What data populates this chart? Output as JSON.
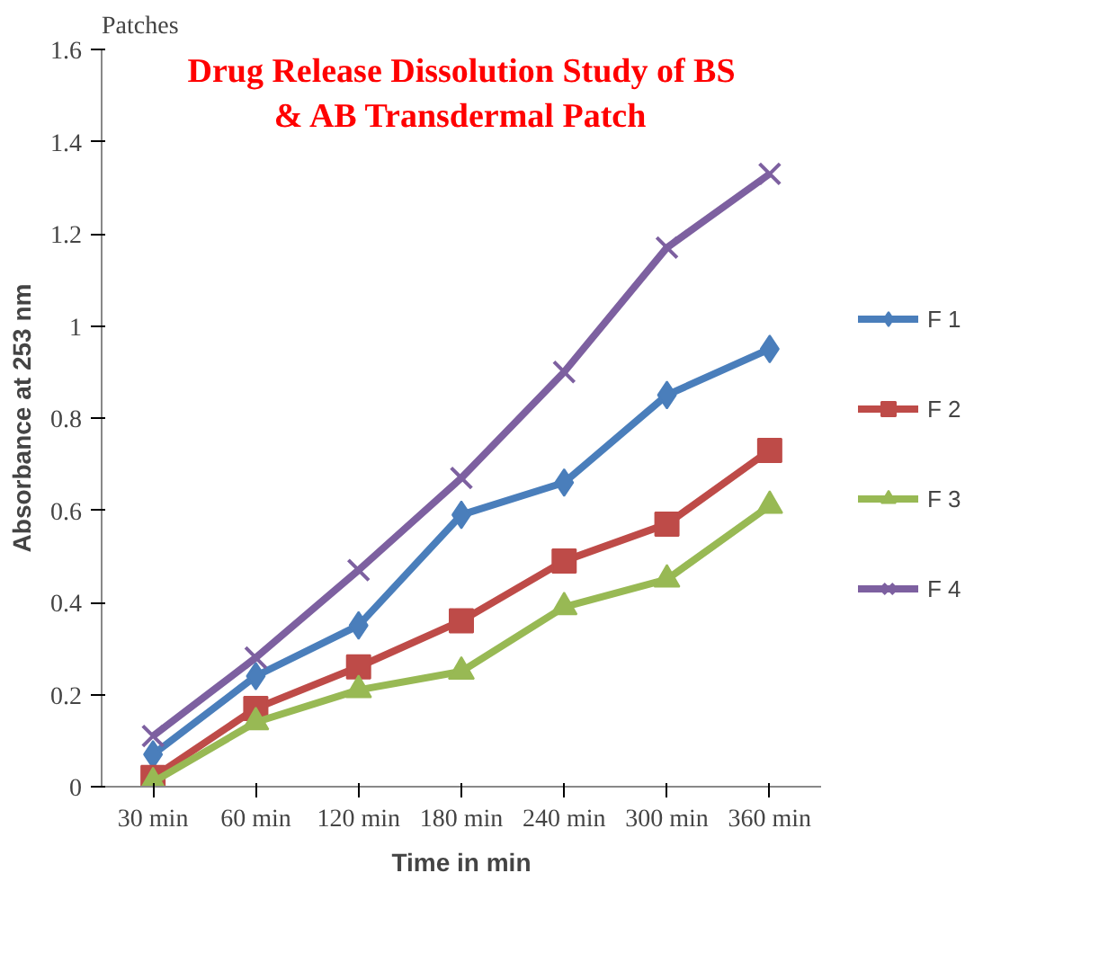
{
  "chart_data": {
    "type": "line",
    "title": "Drug Release Dissolution Study of BS & AB Transdermal Patch",
    "xlabel": "Time in min",
    "ylabel": "Absorbance at 253 nm",
    "annotations": [
      "Patches"
    ],
    "categories": [
      "30 min",
      "60 min",
      "120 min",
      "180 min",
      "240 min",
      "300 min",
      "360 min"
    ],
    "ylim": [
      0,
      1.6
    ],
    "yticks": [
      0,
      0.2,
      0.4,
      0.6,
      0.8,
      1,
      1.2,
      1.4,
      1.6
    ],
    "grid": false,
    "legend": "right",
    "series": [
      {
        "name": "F 1",
        "color": "#4a7ebb",
        "marker": "diamond",
        "values": [
          0.07,
          0.24,
          0.35,
          0.59,
          0.66,
          0.85,
          0.95
        ]
      },
      {
        "name": "F 2",
        "color": "#be4b48",
        "marker": "square",
        "values": [
          0.02,
          0.17,
          0.26,
          0.36,
          0.49,
          0.57,
          0.73
        ]
      },
      {
        "name": "F 3",
        "color": "#98b954",
        "marker": "triangle",
        "values": [
          0.01,
          0.14,
          0.21,
          0.25,
          0.39,
          0.45,
          0.61
        ]
      },
      {
        "name": "F 4",
        "color": "#7d60a0",
        "marker": "cross",
        "values": [
          0.11,
          0.28,
          0.47,
          0.67,
          0.9,
          1.17,
          1.33
        ]
      }
    ]
  }
}
